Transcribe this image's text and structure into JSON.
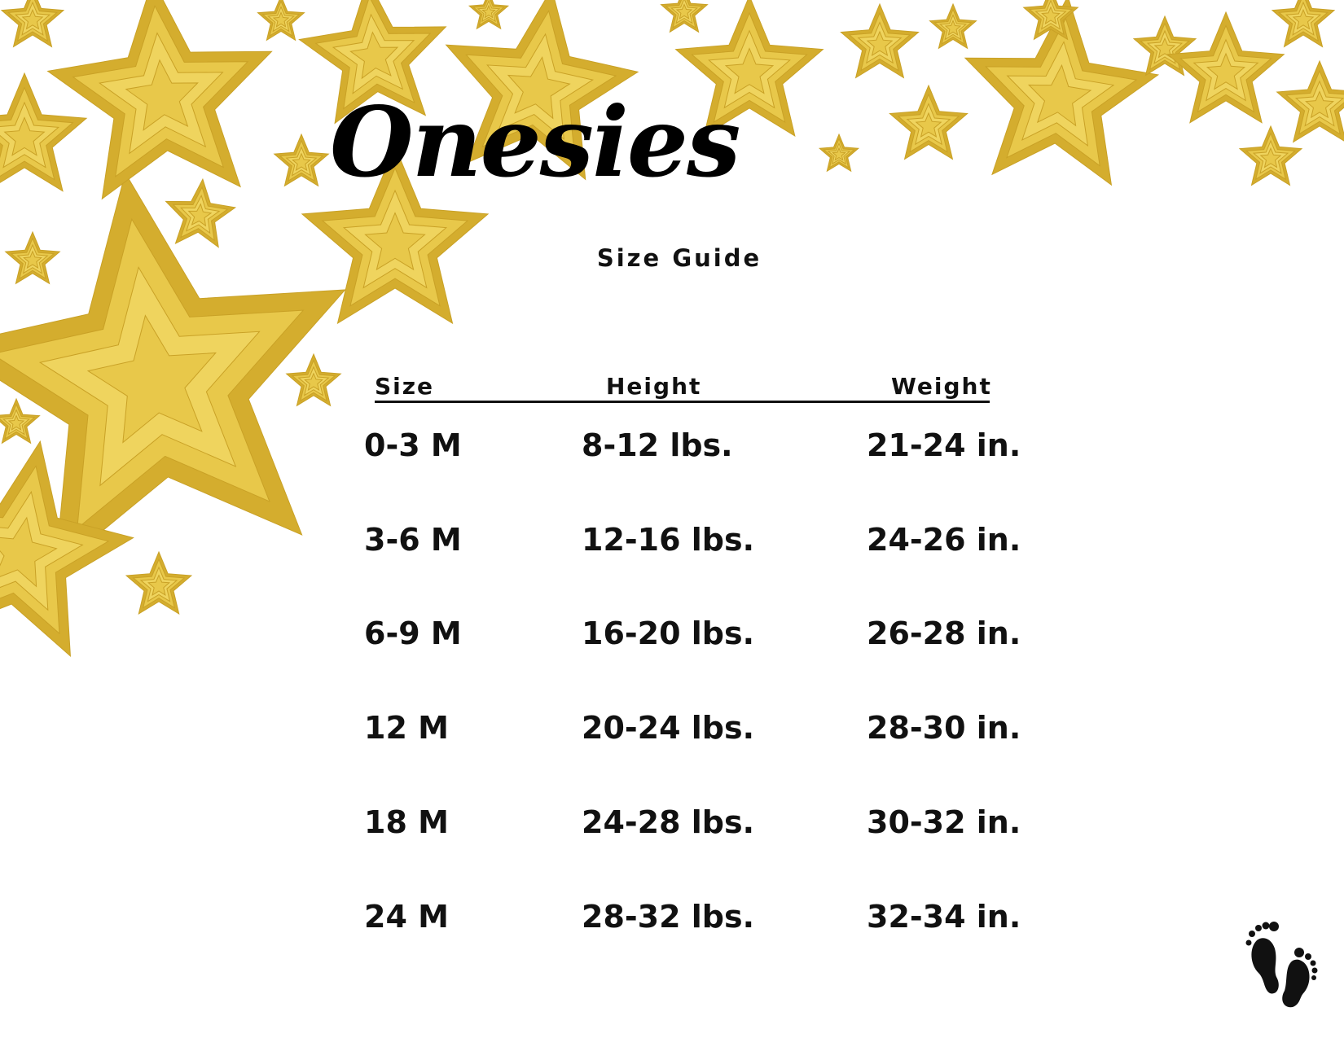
{
  "title": "Onesies",
  "subtitle": "Size Guide",
  "headers": [
    "Size",
    "Height",
    "Weight"
  ],
  "rows": [
    [
      "0-3 M",
      "8-12 lbs.",
      "21-24 in."
    ],
    [
      "3-6 M",
      "12-16 lbs.",
      "24-26 in."
    ],
    [
      "6-9 M",
      "16-20 lbs.",
      "26-28 in."
    ],
    [
      "12 M",
      "20-24 lbs.",
      "28-30 in."
    ],
    [
      "18 M",
      "24-28 lbs.",
      "30-32 in."
    ],
    [
      "24 M",
      "28-32 lbs.",
      "32-34 in."
    ]
  ],
  "colors": {
    "star": "#e8c84a",
    "star_dark": "#d4ad2e",
    "text": "#111111"
  },
  "icons": {
    "decoration": "gold-star-icon",
    "corner": "baby-footprints-icon"
  }
}
